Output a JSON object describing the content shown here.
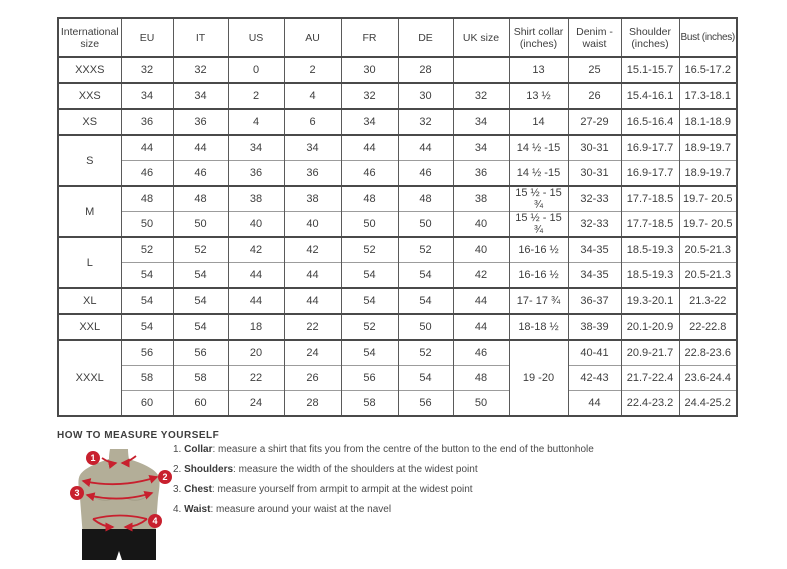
{
  "table": {
    "headers": [
      "International size",
      "EU",
      "IT",
      "US",
      "AU",
      "FR",
      "DE",
      "UK size",
      "Shirt collar (inches)",
      "Denim - waist",
      "Shoulder (inches)",
      "Bust (inches)"
    ],
    "rows": [
      {
        "group_start": true,
        "cells": [
          {
            "text": "XXXS"
          },
          {
            "text": "32"
          },
          {
            "text": "32"
          },
          {
            "text": "0"
          },
          {
            "text": "2"
          },
          {
            "text": "30"
          },
          {
            "text": "28"
          },
          {
            "text": ""
          },
          {
            "text": "13"
          },
          {
            "text": "25"
          },
          {
            "text": "15.1-15.7"
          },
          {
            "text": "16.5-17.2"
          }
        ]
      },
      {
        "group_start": true,
        "cells": [
          {
            "text": "XXS"
          },
          {
            "text": "34"
          },
          {
            "text": "34"
          },
          {
            "text": "2"
          },
          {
            "text": "4"
          },
          {
            "text": "32"
          },
          {
            "text": "30"
          },
          {
            "text": "32"
          },
          {
            "text": "13 ½"
          },
          {
            "text": "26"
          },
          {
            "text": "15.4-16.1"
          },
          {
            "text": "17.3-18.1"
          }
        ]
      },
      {
        "group_start": true,
        "cells": [
          {
            "text": "XS"
          },
          {
            "text": "36"
          },
          {
            "text": "36"
          },
          {
            "text": "4"
          },
          {
            "text": "6"
          },
          {
            "text": "34"
          },
          {
            "text": "32"
          },
          {
            "text": "34"
          },
          {
            "text": "14"
          },
          {
            "text": "27-29"
          },
          {
            "text": "16.5-16.4"
          },
          {
            "text": "18.1-18.9"
          }
        ]
      },
      {
        "group_start": true,
        "cells": [
          {
            "text": "S",
            "rowspan": 2
          },
          {
            "text": "44"
          },
          {
            "text": "44"
          },
          {
            "text": "34"
          },
          {
            "text": "34"
          },
          {
            "text": "44"
          },
          {
            "text": "44"
          },
          {
            "text": "34"
          },
          {
            "text": "14 ½ -15"
          },
          {
            "text": "30-31"
          },
          {
            "text": "16.9-17.7"
          },
          {
            "text": "18.9-19.7"
          }
        ]
      },
      {
        "group_start": false,
        "cells": [
          {
            "text": "46"
          },
          {
            "text": "46"
          },
          {
            "text": "36"
          },
          {
            "text": "36"
          },
          {
            "text": "46"
          },
          {
            "text": "46"
          },
          {
            "text": "36"
          },
          {
            "text": "14 ½ -15"
          },
          {
            "text": "30-31"
          },
          {
            "text": "16.9-17.7"
          },
          {
            "text": "18.9-19.7"
          }
        ]
      },
      {
        "group_start": true,
        "cells": [
          {
            "text": "M",
            "rowspan": 2
          },
          {
            "text": "48"
          },
          {
            "text": "48"
          },
          {
            "text": "38"
          },
          {
            "text": "38"
          },
          {
            "text": "48"
          },
          {
            "text": "48"
          },
          {
            "text": "38"
          },
          {
            "text": "15 ½ - 15 ¾"
          },
          {
            "text": "32-33"
          },
          {
            "text": "17.7-18.5"
          },
          {
            "text": "19.7- 20.5"
          }
        ]
      },
      {
        "group_start": false,
        "cells": [
          {
            "text": "50"
          },
          {
            "text": "50"
          },
          {
            "text": "40"
          },
          {
            "text": "40"
          },
          {
            "text": "50"
          },
          {
            "text": "50"
          },
          {
            "text": "40"
          },
          {
            "text": "15 ½ - 15 ¾"
          },
          {
            "text": "32-33"
          },
          {
            "text": "17.7-18.5"
          },
          {
            "text": "19.7- 20.5"
          }
        ]
      },
      {
        "group_start": true,
        "cells": [
          {
            "text": "L",
            "rowspan": 2
          },
          {
            "text": "52"
          },
          {
            "text": "52"
          },
          {
            "text": "42"
          },
          {
            "text": "42"
          },
          {
            "text": "52"
          },
          {
            "text": "52"
          },
          {
            "text": "40"
          },
          {
            "text": "16-16 ½"
          },
          {
            "text": "34-35"
          },
          {
            "text": "18.5-19.3"
          },
          {
            "text": "20.5-21.3"
          }
        ]
      },
      {
        "group_start": false,
        "cells": [
          {
            "text": "54"
          },
          {
            "text": "54"
          },
          {
            "text": "44"
          },
          {
            "text": "44"
          },
          {
            "text": "54"
          },
          {
            "text": "54"
          },
          {
            "text": "42"
          },
          {
            "text": "16-16 ½"
          },
          {
            "text": "34-35"
          },
          {
            "text": "18.5-19.3"
          },
          {
            "text": "20.5-21.3"
          }
        ]
      },
      {
        "group_start": true,
        "cells": [
          {
            "text": "XL"
          },
          {
            "text": "54"
          },
          {
            "text": "54"
          },
          {
            "text": "44"
          },
          {
            "text": "44"
          },
          {
            "text": "54"
          },
          {
            "text": "54"
          },
          {
            "text": "44"
          },
          {
            "text": "17- 17 ¾"
          },
          {
            "text": "36-37"
          },
          {
            "text": "19.3-20.1"
          },
          {
            "text": "21.3-22"
          }
        ]
      },
      {
        "group_start": true,
        "cells": [
          {
            "text": "XXL"
          },
          {
            "text": "54"
          },
          {
            "text": "54"
          },
          {
            "text": "18"
          },
          {
            "text": "22"
          },
          {
            "text": "52"
          },
          {
            "text": "50"
          },
          {
            "text": "44"
          },
          {
            "text": "18-18 ½"
          },
          {
            "text": "38-39"
          },
          {
            "text": "20.1-20.9"
          },
          {
            "text": "22-22.8"
          }
        ]
      },
      {
        "group_start": true,
        "cells": [
          {
            "text": "XXXL",
            "rowspan": 3
          },
          {
            "text": "56"
          },
          {
            "text": "56"
          },
          {
            "text": "20"
          },
          {
            "text": "24"
          },
          {
            "text": "54"
          },
          {
            "text": "52"
          },
          {
            "text": "46"
          },
          {
            "text": "19 -20",
            "rowspan": 3
          },
          {
            "text": "40-41"
          },
          {
            "text": "20.9-21.7"
          },
          {
            "text": "22.8-23.6"
          }
        ]
      },
      {
        "group_start": false,
        "cells": [
          {
            "text": "58"
          },
          {
            "text": "58"
          },
          {
            "text": "22"
          },
          {
            "text": "26"
          },
          {
            "text": "56"
          },
          {
            "text": "54"
          },
          {
            "text": "48"
          },
          {
            "text": "42-43"
          },
          {
            "text": "21.7-22.4"
          },
          {
            "text": "23.6-24.4"
          }
        ]
      },
      {
        "group_start": false,
        "cells": [
          {
            "text": "60"
          },
          {
            "text": "60"
          },
          {
            "text": "24"
          },
          {
            "text": "28"
          },
          {
            "text": "58"
          },
          {
            "text": "56"
          },
          {
            "text": "50"
          },
          {
            "text": "44"
          },
          {
            "text": "22.4-23.2"
          },
          {
            "text": "24.4-25.2"
          }
        ]
      }
    ]
  },
  "measure": {
    "title": "HOW TO MEASURE YOURSELF",
    "items": [
      {
        "num": "1.",
        "label": "Collar",
        "rest": ": measure a shirt that fits you from the centre of the button to the end of the buttonhole"
      },
      {
        "num": "2.",
        "label": "Shoulders",
        "rest": ": measure the width of the shoulders at the widest point"
      },
      {
        "num": "3.",
        "label": "Chest",
        "rest": ": measure yourself from armpit to armpit at the widest point"
      },
      {
        "num": "4.",
        "label": "Waist",
        "rest": ": measure around your waist at the navel"
      }
    ],
    "figure_markers": [
      "1",
      "2",
      "3",
      "4"
    ]
  },
  "colors": {
    "accent_red": "#c8202e",
    "mannequin_tan": "#b3ae98",
    "shorts_black": "#161616",
    "border_dark": "#4a4a4a",
    "border_light": "#9c9c9c",
    "text": "#3e3e3e"
  }
}
